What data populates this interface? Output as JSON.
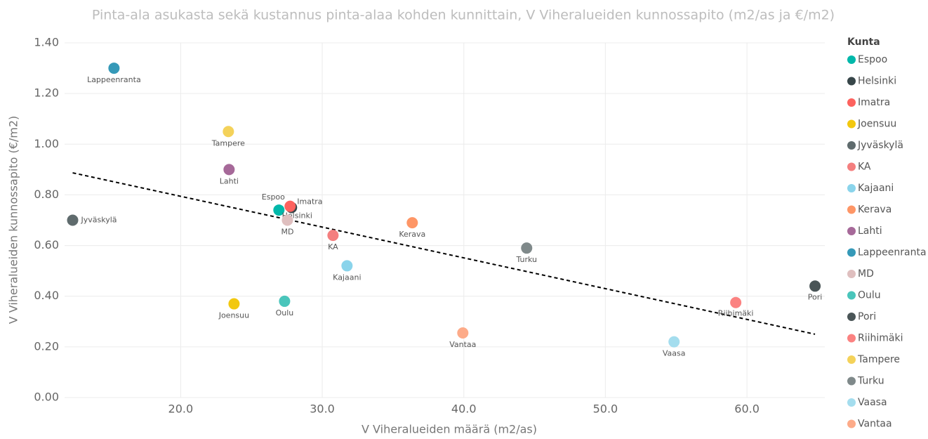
{
  "chart_data": {
    "type": "scatter",
    "title": "Pinta-ala asukasta sekä kustannus pinta-alaa kohden kunnittain, V Viheralueiden kunnossapito (m2/as ja €/m2)",
    "x_label": "V Viheralueiden määrä (m2/as)",
    "y_label": "V Viheralueiden kunnossapito (€/m2)",
    "legend_title": "Kunta",
    "legend": "right",
    "grid": true,
    "xlim": [
      11.8,
      65.5
    ],
    "ylim": [
      0,
      1.4
    ],
    "xticks": [
      {
        "value": 20,
        "label": "20.0"
      },
      {
        "value": 30,
        "label": "30.0"
      },
      {
        "value": 40,
        "label": "40.0"
      },
      {
        "value": 50,
        "label": "50.0"
      },
      {
        "value": 60,
        "label": "60.0"
      }
    ],
    "yticks": [
      {
        "value": 0,
        "label": "0.00"
      },
      {
        "value": 0.2,
        "label": "0.20"
      },
      {
        "value": 0.4,
        "label": "0.40"
      },
      {
        "value": 0.6,
        "label": "0.60"
      },
      {
        "value": 0.8,
        "label": "0.80"
      },
      {
        "value": 1.0,
        "label": "1.00"
      },
      {
        "value": 1.2,
        "label": "1.20"
      },
      {
        "value": 1.4,
        "label": "1.40"
      }
    ],
    "trend_line": {
      "x": [
        12.37,
        64.81
      ],
      "y": [
        0.887,
        0.25
      ]
    },
    "series": [
      {
        "name": "Espoo",
        "color": "#01B8AA",
        "x": [
          26.94
        ],
        "values": [
          0.74
        ]
      },
      {
        "name": "Helsinki",
        "color": "#374649",
        "x": [
          27.83
        ],
        "values": [
          0.75
        ]
      },
      {
        "name": "Imatra",
        "color": "#FD625E",
        "x": [
          27.73
        ],
        "values": [
          0.755
        ]
      },
      {
        "name": "Joensuu",
        "color": "#F2C80F",
        "x": [
          23.77
        ],
        "values": [
          0.37
        ]
      },
      {
        "name": "Jyväskylä",
        "color": "#5F6B6D",
        "x": [
          12.37
        ],
        "values": [
          0.7
        ]
      },
      {
        "name": "KA",
        "color": "#F47F7F",
        "x": [
          30.76
        ],
        "values": [
          0.64
        ]
      },
      {
        "name": "Kajaani",
        "color": "#8AD4EB",
        "x": [
          31.75
        ],
        "values": [
          0.52
        ]
      },
      {
        "name": "Kerava",
        "color": "#FE9666",
        "x": [
          36.36
        ],
        "values": [
          0.69
        ]
      },
      {
        "name": "Lahti",
        "color": "#A66999",
        "x": [
          23.42
        ],
        "values": [
          0.9
        ]
      },
      {
        "name": "Lappeenranta",
        "color": "#3599B8",
        "x": [
          15.29
        ],
        "values": [
          1.3
        ]
      },
      {
        "name": "MD",
        "color": "#DFBFBF",
        "x": [
          27.54
        ],
        "values": [
          0.7
        ]
      },
      {
        "name": "Oulu",
        "color": "#4AC5BB",
        "x": [
          27.34
        ],
        "values": [
          0.38
        ]
      },
      {
        "name": "Pori",
        "color": "#4A5557",
        "x": [
          64.81
        ],
        "values": [
          0.44
        ]
      },
      {
        "name": "Riihimäki",
        "color": "#FB8281",
        "x": [
          59.21
        ],
        "values": [
          0.375
        ]
      },
      {
        "name": "Tampere",
        "color": "#F4D25A",
        "x": [
          23.37
        ],
        "values": [
          1.05
        ]
      },
      {
        "name": "Turku",
        "color": "#7F898A",
        "x": [
          44.44
        ],
        "values": [
          0.59
        ]
      },
      {
        "name": "Vaasa",
        "color": "#A4DDEE",
        "x": [
          54.85
        ],
        "values": [
          0.22
        ]
      },
      {
        "name": "Vantaa",
        "color": "#FDAB89",
        "x": [
          39.93
        ],
        "values": [
          0.255
        ]
      }
    ]
  }
}
